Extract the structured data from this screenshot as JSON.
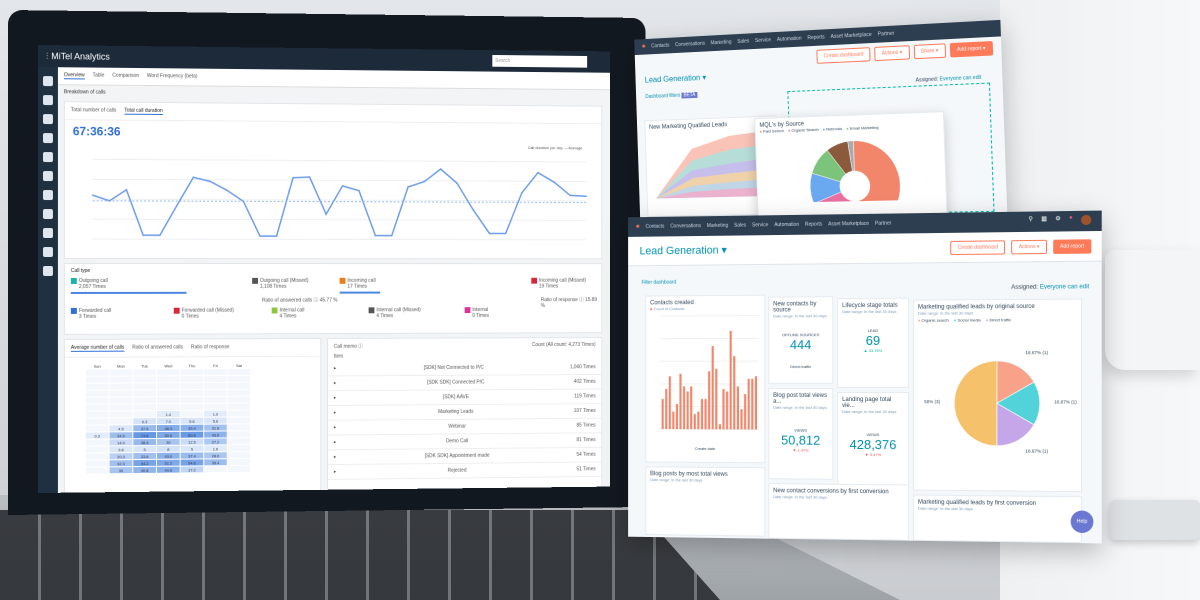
{
  "mitel": {
    "app_title": "MiTel Analytics",
    "search_placeholder": "Search",
    "tabs": [
      "Overview",
      "Table",
      "Comparison",
      "Word Frequency (beta)"
    ],
    "section": "Breakdown of calls",
    "subtabs": [
      "Total number of calls",
      "Total call duration"
    ],
    "total_duration": "67:36:36",
    "chart_legend": "Call duration per day",
    "average_label": "Average",
    "line_values": [
      0.55,
      0.48,
      0.62,
      0.05,
      0.05,
      0.42,
      0.78,
      0.73,
      0.62,
      0.48,
      0.04,
      0.04,
      0.78,
      0.79,
      0.32,
      0.68,
      0.62,
      0.05,
      0.05,
      0.67,
      0.74,
      0.9,
      0.72,
      0.38,
      0.08,
      0.08,
      0.6,
      0.86,
      0.74,
      0.57,
      0.56
    ],
    "average_level": 0.48,
    "call_type": {
      "title": "Call type",
      "items": [
        {
          "label": "Outgoing call",
          "count": "2,057 Times",
          "color": "#1bb3a8"
        },
        {
          "label": "Outgoing call (Missed)",
          "count": "1,108 Times",
          "color": "#555555"
        },
        {
          "label": "Incoming call",
          "count": "17 Times",
          "color": "#f07a1a"
        },
        {
          "label": "Incoming call (Missed)",
          "count": "19 Times",
          "color": "#d9263a"
        },
        {
          "label": "Forwarded call",
          "count": "3 Times",
          "color": "#2f6fd6"
        },
        {
          "label": "Forwarded call (Missed)",
          "count": "0 Times",
          "color": "#d9263a"
        },
        {
          "label": "Internal call",
          "count": "4 Times",
          "color": "#8cc63f"
        },
        {
          "label": "Internal call (Missed)",
          "count": "4 Times",
          "color": "#555555"
        },
        {
          "label": "Internal",
          "count": "0 Times",
          "color": "#e0339a"
        }
      ],
      "answered_ratio": "Ratio of answered calls ⓘ 45.77 %",
      "response_ratio": "Ratio of response ⓘ 15.89 %",
      "answered_fill": 0.45,
      "response_fill": 0.16
    },
    "heatmap": {
      "tabs": [
        "Average number of calls",
        "Ratio of answered calls",
        "Ratio of response"
      ],
      "days": [
        "Sun",
        "Mon",
        "Tue",
        "Wed",
        "Thu",
        "Fri",
        "Sat"
      ],
      "rows": [
        [
          "",
          "",
          "",
          "1.4",
          "",
          "1.0",
          ""
        ],
        [
          "",
          "",
          "6.3",
          "7.0",
          "5.6",
          "5.6",
          ""
        ],
        [
          "",
          "4.5",
          "37.6",
          "48.3",
          "45.4",
          "31.8",
          ""
        ],
        [
          "0.3",
          "34.5",
          "73.6",
          "50.6",
          "60.6",
          "43.6",
          ""
        ],
        [
          "",
          "14.0",
          "38.3",
          "30",
          "12.5",
          "27.2",
          ""
        ],
        [
          "",
          "3.8",
          "5",
          "8",
          "5",
          "1.6",
          ""
        ],
        [
          "",
          "20.3",
          "33.8",
          "43.6",
          "37.4",
          "28.6",
          ""
        ],
        [
          "",
          "32.3",
          "54.2",
          "51.2",
          "54.6",
          "35.4",
          ""
        ],
        [
          "",
          "30",
          "40.8",
          "44.8",
          "17.2",
          "",
          ""
        ]
      ]
    },
    "memo": {
      "title": "Call memo ⓘ",
      "col": "Item",
      "count_label": "Count (All count: 4,273 Times)",
      "rows": [
        [
          "[SDK] Not Connected to P/C",
          "1,040 Times"
        ],
        [
          "[SDK SDK] Connected P/C",
          "402 Times"
        ],
        [
          "[SDK] AAVE",
          "119 Times"
        ],
        [
          "Marketing Leads",
          "107 Times"
        ],
        [
          "Webinar",
          "85 Times"
        ],
        [
          "Demo Call",
          "81 Times"
        ],
        [
          "[SDK SDK] Appointment made",
          "54 Times"
        ],
        [
          "Rejected",
          "51 Times"
        ]
      ]
    }
  },
  "hubspot_back": {
    "nav": [
      "Contacts",
      "Conversations",
      "Marketing",
      "Sales",
      "Service",
      "Automation",
      "Reports",
      "Asset Marketplace",
      "Partner"
    ],
    "title": "Lead Generation",
    "buttons": [
      "Create dashboard",
      "Actions ▾",
      "Share ▾",
      "Add report ▾"
    ],
    "assigned": "Assigned:",
    "assigned_value": "Everyone can edit",
    "filters": "Dashboard filters",
    "beta": "BETA",
    "area_title": "New Marketing Qualified Leads",
    "donut_title": "MQL's by Source",
    "donut_legend": [
      "Paid Search",
      "Organic Search",
      "Referrals",
      "Email Marketing"
    ],
    "donut_values": [
      55,
      14,
      11,
      10,
      8,
      2
    ],
    "donut_colors": [
      "#f2866b",
      "#e96fa0",
      "#6aa8f0",
      "#7cc47c",
      "#8b5a3c",
      "#aaaaaa"
    ]
  },
  "hubspot_front": {
    "nav": [
      "Contacts",
      "Conversations",
      "Marketing",
      "Sales",
      "Service",
      "Automation",
      "Reports",
      "Asset Marketplace",
      "Partner"
    ],
    "title": "Lead Generation",
    "buttons": {
      "create": "Create dashboard",
      "actions": "Actions ▾",
      "add": "Add report"
    },
    "filter": "Filter dashboard",
    "assigned": "Assigned:",
    "assigned_value": "Everyone can edit",
    "contacts_created": {
      "title": "Contacts created",
      "legend": "Count of Contacts",
      "xlabel": "Create date",
      "values": [
        12,
        16,
        21,
        7,
        10,
        22,
        17,
        15,
        17,
        6,
        7,
        12,
        12,
        23,
        33,
        24,
        2,
        16,
        15,
        39,
        29,
        17,
        8,
        14,
        20,
        20,
        21
      ]
    },
    "new_contacts": {
      "title": "New contacts by source",
      "sub": "Date range: In the last 30 days",
      "label": "OFFLINE SOURCES",
      "value": "444",
      "footer": "Direct traffic"
    },
    "lifecycle": {
      "title": "Lifecycle stage totals",
      "sub": "Date range: In the last 30 days",
      "label": "LEAD",
      "value": "69",
      "change": "▲ 43.75%"
    },
    "blog_views": {
      "title": "Blog post total views a...",
      "sub": "Date range: In the last 30 days",
      "label": "VIEWS",
      "value": "50,812",
      "change": "▼ 1.47%"
    },
    "landing_views": {
      "title": "Landing page total vie...",
      "sub": "Date range: In the last 30 days",
      "label": "VIEWS",
      "value": "428,376",
      "change": "▼ 3.47%"
    },
    "mql_source": {
      "title": "Marketing qualified leads by original source",
      "sub": "Date range: In the last 30 days",
      "legend": [
        "Organic search",
        "Social media",
        "Direct traffic"
      ],
      "slices": [
        {
          "label": "16.67% (1)",
          "value": 16.67,
          "color": "#f8a28a"
        },
        {
          "label": "16.67% (1)",
          "value": 16.67,
          "color": "#51d3d9"
        },
        {
          "label": "16.67% (1)",
          "value": 16.67,
          "color": "#c5a6e8"
        },
        {
          "label": "50% (3)",
          "value": 50,
          "color": "#f5c26b"
        }
      ]
    },
    "blog_most": {
      "title": "Blog posts by most total views",
      "sub": "Date range: In the last 30 days"
    },
    "conversions": {
      "title": "New contact conversions by first conversion",
      "sub": "Date range: In the last 30 days"
    },
    "mql_first": {
      "title": "Marketing qualified leads by first conversion",
      "sub": "Date range: In the last 30 days"
    },
    "help": "Help"
  }
}
